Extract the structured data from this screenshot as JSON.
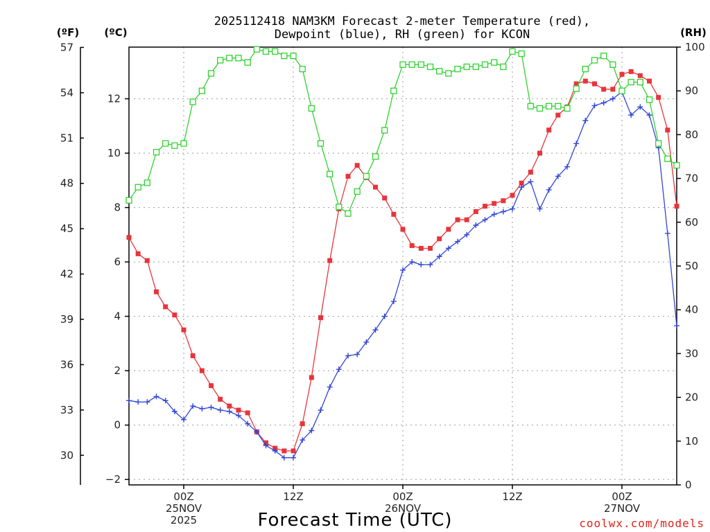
{
  "header": {
    "title_line1": "2025112418 NAM3KM Forecast 2-meter Temperature (red),",
    "title_line2": "Dewpoint (blue), RH (green) for KCON",
    "unit_f": "(ºF)",
    "unit_c": "(ºC)",
    "unit_rh": "(RH)"
  },
  "xaxis": {
    "label": "Forecast Time (UTC)"
  },
  "credit": "coolwx.com/models",
  "chart_data": {
    "type": "line",
    "title": "2025112418 NAM3KM Forecast 2-meter Temperature (red), Dewpoint (blue), RH (green) for KCON",
    "xlabel": "Forecast Time (UTC)",
    "x_unit": "hours since 2025-11-24 18Z",
    "xlim": [
      0,
      60
    ],
    "x_ticks": [
      {
        "x": 6,
        "lines": [
          "00Z",
          "25NOV",
          "2025"
        ]
      },
      {
        "x": 18,
        "lines": [
          "12Z"
        ]
      },
      {
        "x": 30,
        "lines": [
          "00Z",
          "26NOV"
        ]
      },
      {
        "x": 42,
        "lines": [
          "12Z"
        ]
      },
      {
        "x": 54,
        "lines": [
          "00Z",
          "27NOV"
        ]
      }
    ],
    "y_left_c": {
      "label": "(ºC)",
      "ylim": [
        -2.2,
        13.9
      ],
      "ticks": [
        -2,
        0,
        2,
        4,
        6,
        8,
        10,
        12
      ]
    },
    "y_left_f": {
      "label": "(ºF)",
      "ticks": [
        30,
        33,
        36,
        39,
        42,
        45,
        48,
        51,
        54,
        57
      ]
    },
    "y_right_rh": {
      "label": "(RH)",
      "ylim": [
        0,
        100
      ],
      "ticks": [
        0,
        10,
        20,
        30,
        40,
        50,
        60,
        70,
        80,
        90,
        100
      ]
    },
    "grid": true,
    "series": [
      {
        "name": "Temperature",
        "axis": "c",
        "color": "#e8343b",
        "marker": "filled-square",
        "x": [
          0,
          1,
          2,
          3,
          4,
          5,
          6,
          7,
          8,
          9,
          10,
          11,
          12,
          13,
          14,
          15,
          16,
          17,
          18,
          19,
          20,
          21,
          22,
          23,
          24,
          25,
          26,
          27,
          28,
          29,
          30,
          31,
          32,
          33,
          34,
          35,
          36,
          37,
          38,
          39,
          40,
          41,
          42,
          43,
          44,
          45,
          46,
          47,
          48,
          49,
          50,
          51,
          52,
          53,
          54,
          55,
          56,
          57,
          58,
          59,
          60
        ],
        "values": [
          6.9,
          6.3,
          6.05,
          4.9,
          4.35,
          4.05,
          3.5,
          2.55,
          2.0,
          1.45,
          0.95,
          0.7,
          0.55,
          0.45,
          -0.25,
          -0.65,
          -0.85,
          -0.95,
          -0.95,
          0.05,
          1.75,
          3.95,
          6.05,
          7.95,
          9.15,
          9.55,
          9.1,
          8.75,
          8.35,
          7.75,
          7.2,
          6.6,
          6.5,
          6.5,
          6.85,
          7.2,
          7.55,
          7.55,
          7.85,
          8.05,
          8.15,
          8.25,
          8.45,
          8.9,
          9.3,
          10.0,
          10.85,
          11.4,
          11.7,
          12.55,
          12.65,
          12.55,
          12.35,
          12.35,
          12.9,
          13.0,
          12.85,
          12.65,
          12.05,
          10.85,
          8.05
        ]
      },
      {
        "name": "Dewpoint",
        "axis": "c",
        "color": "#3046d6",
        "marker": "plus",
        "x": [
          0,
          1,
          2,
          3,
          4,
          5,
          6,
          7,
          8,
          9,
          10,
          11,
          12,
          13,
          14,
          15,
          16,
          17,
          18,
          19,
          20,
          21,
          22,
          23,
          24,
          25,
          26,
          27,
          28,
          29,
          30,
          31,
          32,
          33,
          34,
          35,
          36,
          37,
          38,
          39,
          40,
          41,
          42,
          43,
          44,
          45,
          46,
          47,
          48,
          49,
          50,
          51,
          52,
          53,
          54,
          55,
          56,
          57,
          58,
          59,
          60
        ],
        "values": [
          0.9,
          0.85,
          0.85,
          1.05,
          0.9,
          0.5,
          0.2,
          0.7,
          0.6,
          0.65,
          0.55,
          0.5,
          0.35,
          0.05,
          -0.25,
          -0.75,
          -0.95,
          -1.2,
          -1.2,
          -0.55,
          -0.2,
          0.55,
          1.4,
          2.05,
          2.55,
          2.6,
          3.05,
          3.5,
          4.0,
          4.55,
          5.7,
          6.0,
          5.9,
          5.9,
          6.2,
          6.5,
          6.75,
          7.0,
          7.35,
          7.55,
          7.75,
          7.85,
          7.95,
          8.75,
          8.95,
          7.95,
          8.65,
          9.15,
          9.5,
          10.35,
          11.2,
          11.75,
          11.85,
          12.0,
          12.25,
          11.4,
          11.7,
          11.4,
          10.2,
          7.05,
          3.65
        ]
      },
      {
        "name": "RH",
        "axis": "rh",
        "color": "#2fd22f",
        "marker": "open-square",
        "x": [
          0,
          1,
          2,
          3,
          4,
          5,
          6,
          7,
          8,
          9,
          10,
          11,
          12,
          13,
          14,
          15,
          16,
          17,
          18,
          19,
          20,
          21,
          22,
          23,
          24,
          25,
          26,
          27,
          28,
          29,
          30,
          31,
          32,
          33,
          34,
          35,
          36,
          37,
          38,
          39,
          40,
          41,
          42,
          43,
          44,
          45,
          46,
          47,
          48,
          49,
          50,
          51,
          52,
          53,
          54,
          55,
          56,
          57,
          58,
          59,
          60
        ],
        "values": [
          65,
          68,
          69,
          76,
          78,
          77.5,
          78,
          87.5,
          90,
          94,
          97,
          97.5,
          97.5,
          96.5,
          99.5,
          99,
          99,
          98,
          98,
          95,
          86,
          78,
          71,
          63.5,
          62,
          67,
          70.5,
          75,
          81,
          90,
          96,
          96,
          96,
          95.5,
          94.5,
          94,
          95,
          95.5,
          95.5,
          96,
          96.5,
          95.5,
          99,
          98.5,
          86.5,
          86,
          86.5,
          86.5,
          86,
          90.5,
          95,
          97,
          98,
          96,
          90,
          92,
          92,
          88,
          78,
          74.5,
          73
        ]
      }
    ]
  }
}
